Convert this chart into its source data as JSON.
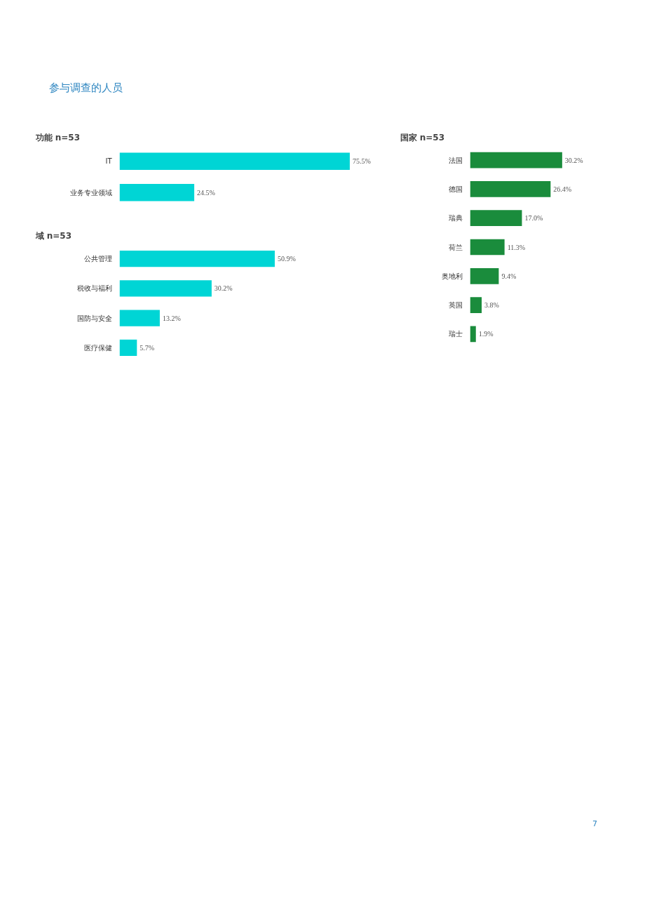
{
  "chart_data": [
    {
      "type": "bar",
      "orientation": "horizontal",
      "tick_labels": "y",
      "title": "功能 n=53",
      "annotations": [
        "参与调查的人员"
      ],
      "categories": [
        "IT",
        "业务专业领域"
      ],
      "values": [
        75.5,
        24.5
      ],
      "value_labels": [
        "75.5%",
        "24.5%"
      ],
      "color": "#00d5d5"
    },
    {
      "type": "bar",
      "orientation": "horizontal",
      "tick_labels": "y",
      "title": "域 n=53",
      "categories": [
        "公共管理",
        "税收与福利",
        "国防与安全",
        "医疗保健"
      ],
      "values": [
        50.9,
        30.2,
        13.2,
        5.7
      ],
      "value_labels": [
        "50.9%",
        "30.2%",
        "13.2%",
        "5.7%"
      ],
      "color": "#00d5d5"
    },
    {
      "type": "bar",
      "orientation": "horizontal",
      "tick_labels": "y",
      "title": "国家 n=53",
      "annotations": [
        "7"
      ],
      "categories": [
        "法国",
        "德国",
        "瑞典",
        "荷兰",
        "奥地利",
        "英国",
        "瑞士"
      ],
      "values": [
        30.2,
        26.4,
        17.0,
        11.3,
        9.4,
        3.8,
        1.9
      ],
      "value_labels": [
        "30.2%",
        "26.4%",
        "17.0%",
        "11.3%",
        "9.4%",
        "3.8%",
        "1.9%"
      ],
      "color": "#1a8c3c"
    }
  ]
}
